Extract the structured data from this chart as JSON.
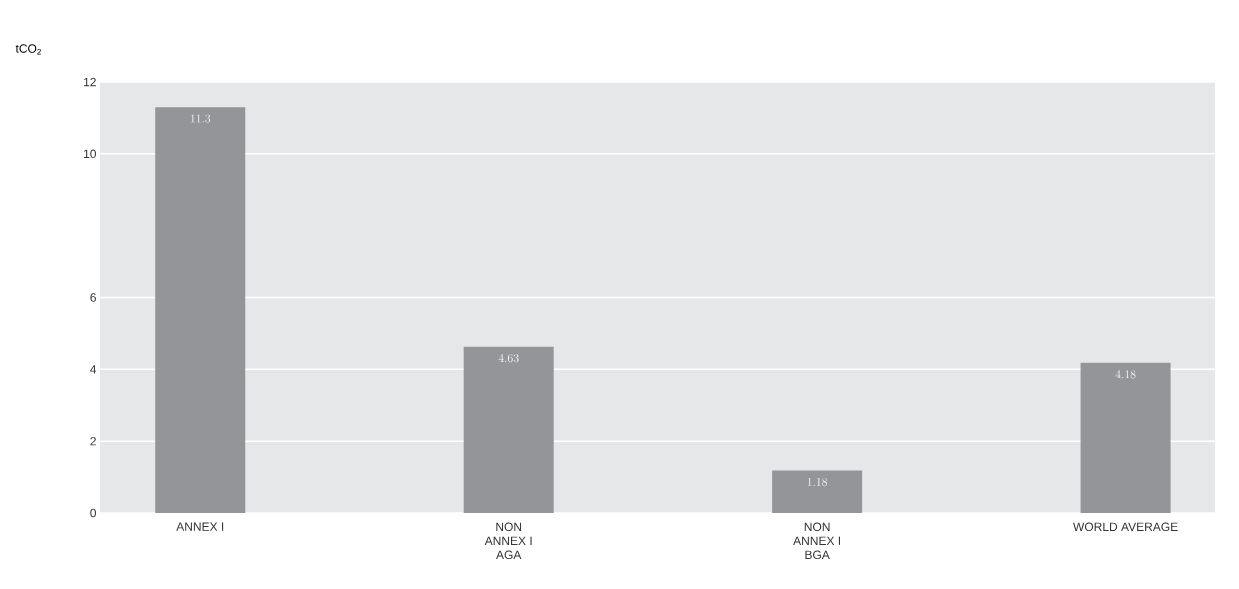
{
  "chart_data": {
    "type": "bar",
    "ylabel": "tCO$_{2}$",
    "categories": [
      "ANNEX I",
      "NON ANNEX I AGA",
      "NON ANNEX I BGA",
      "WORLD AVERAGE"
    ],
    "values": [
      11.3,
      4.63,
      1.18,
      4.18
    ],
    "color": "#939598",
    "data_labels": true,
    "ylim": [
      0,
      12
    ],
    "yticks": [
      0,
      2,
      4,
      6,
      10,
      12
    ],
    "grid": "y"
  }
}
